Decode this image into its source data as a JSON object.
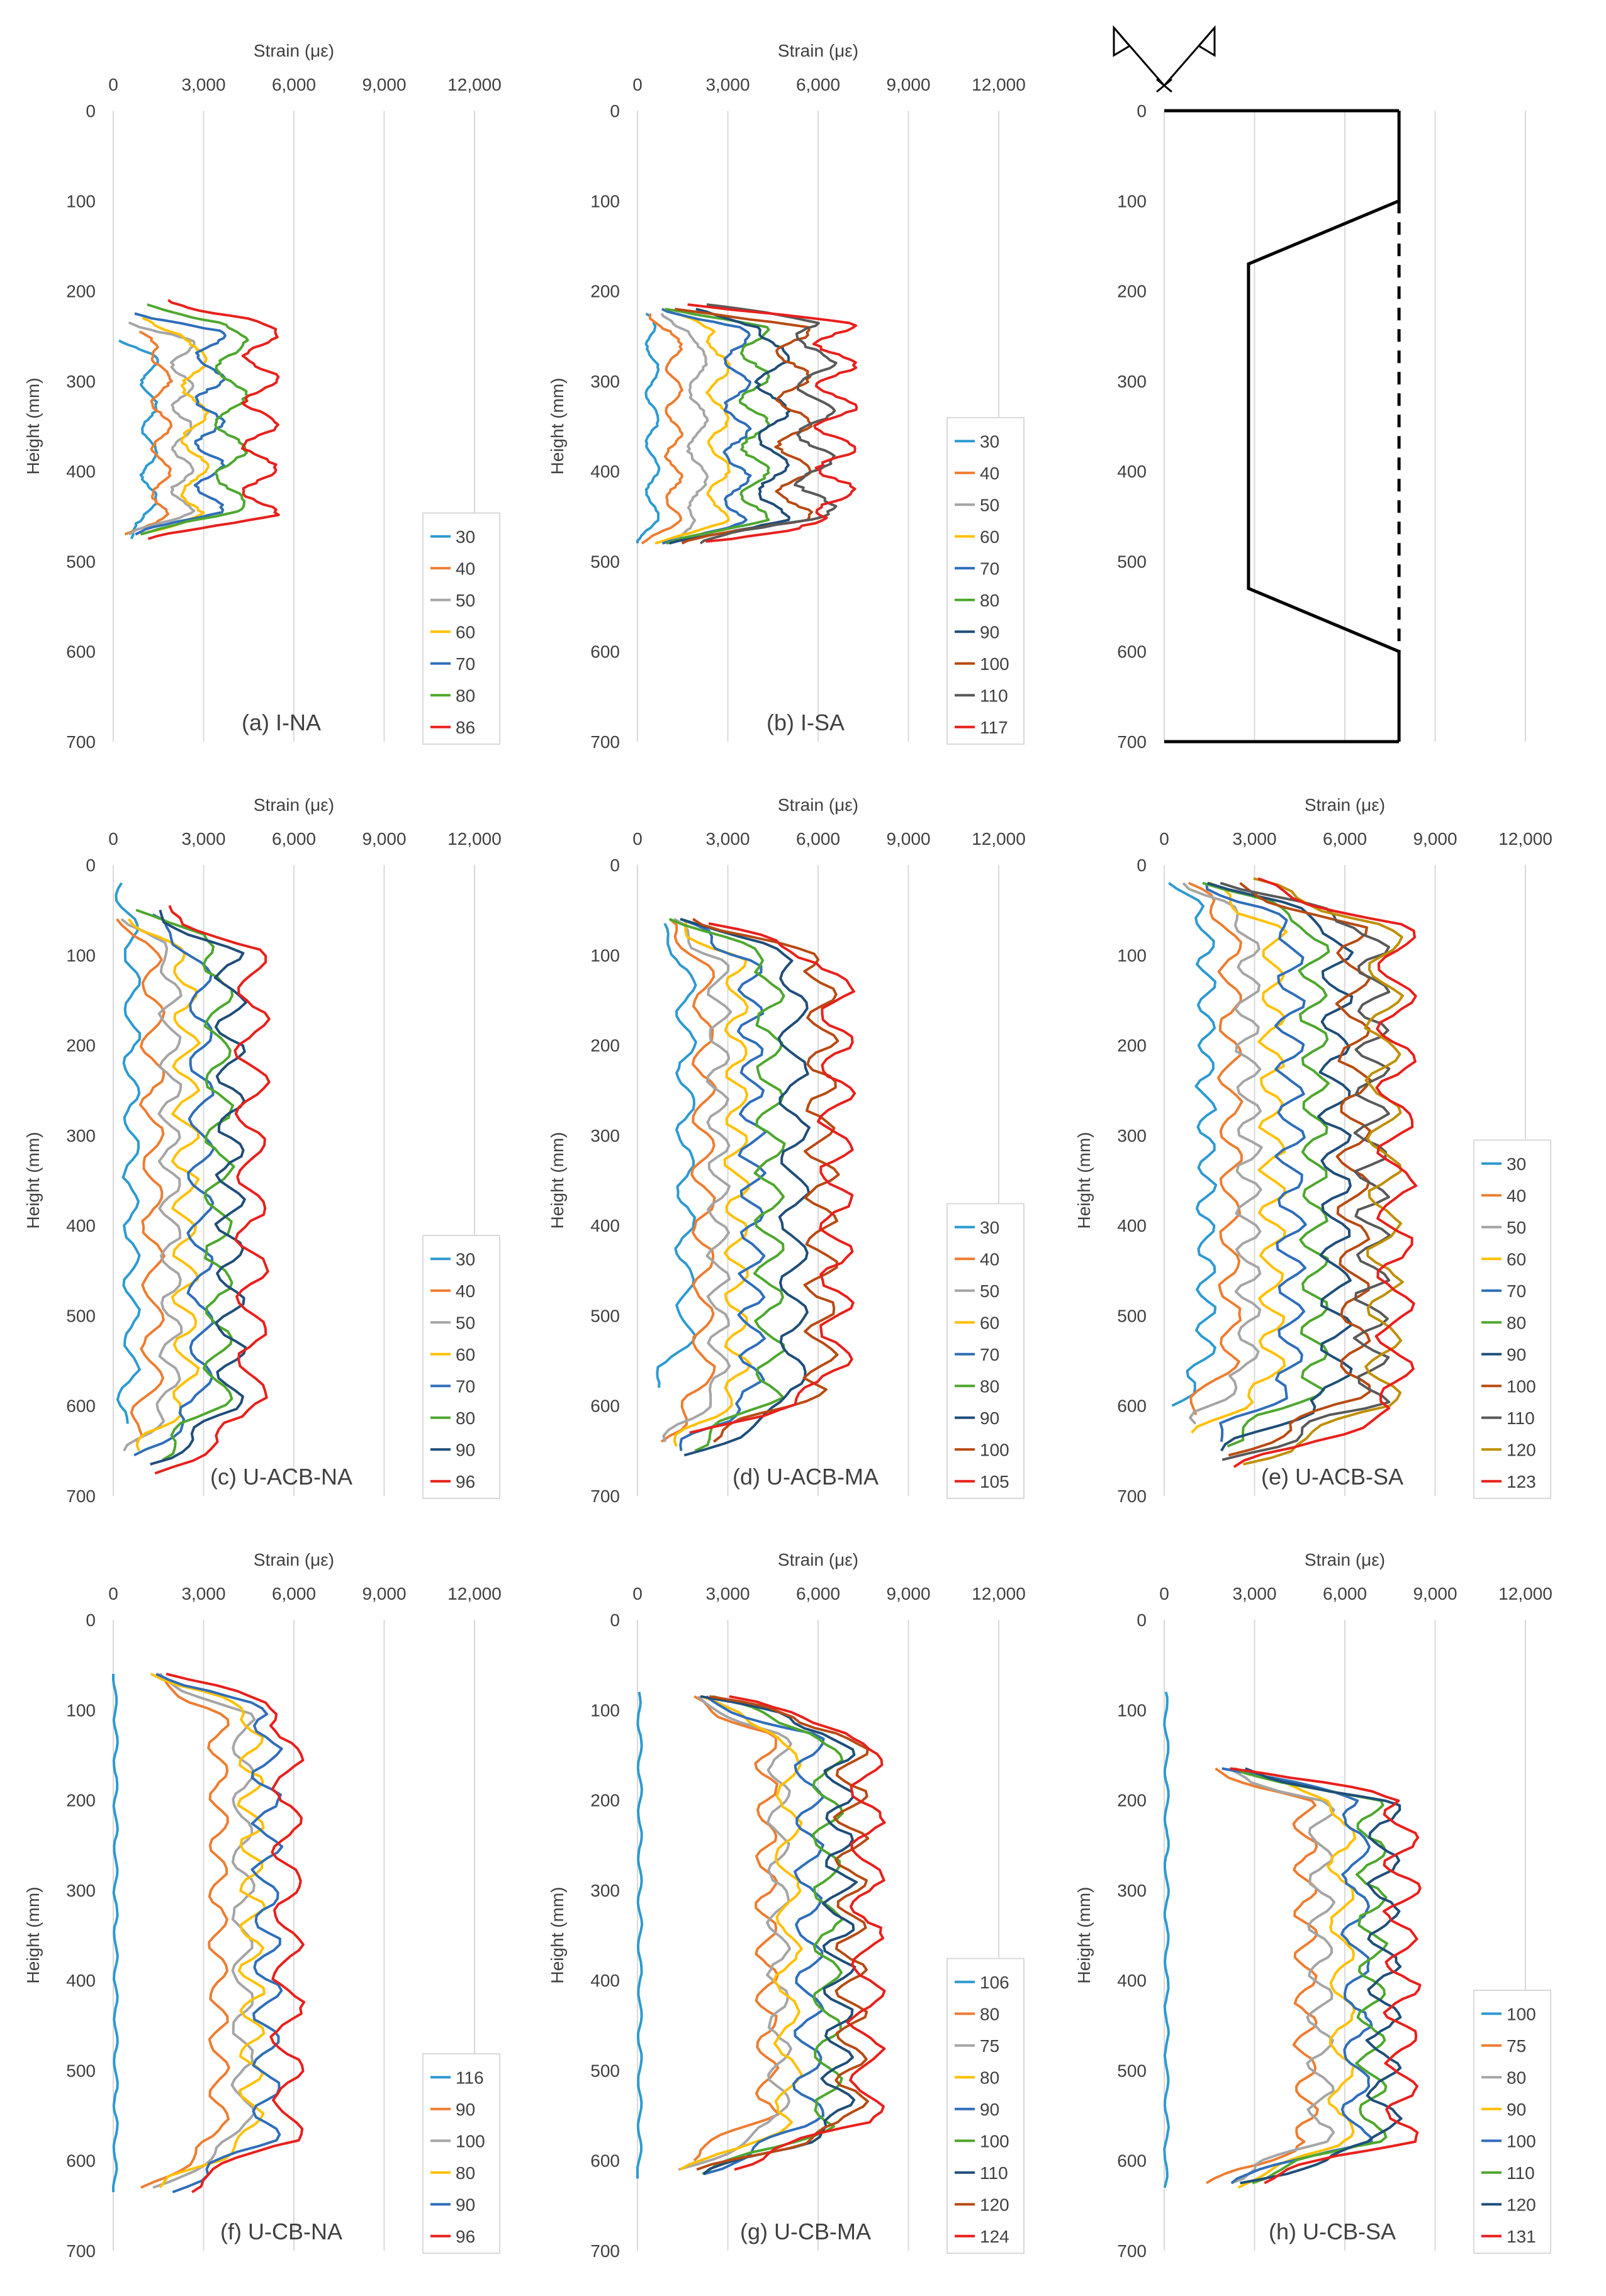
{
  "chart_data": [
    {
      "type": "line",
      "title": "(a) I-NA",
      "xlabel": "Strain (με)",
      "ylabel": "Height (mm)",
      "xlim": [
        0,
        12000
      ],
      "ylim": [
        0,
        700
      ],
      "x_ticks": [
        "0",
        "3,000",
        "6,000",
        "9,000",
        "12,000"
      ],
      "y_ticks": [
        "0",
        "100",
        "200",
        "300",
        "400",
        "500",
        "600",
        "700"
      ],
      "legend_position": "bottom-right",
      "series": [
        {
          "name": "30",
          "color": "#2E9AD0",
          "y_range": [
            255,
            475
          ],
          "peak": 1200,
          "amp": 250
        },
        {
          "name": "40",
          "color": "#ED7D31",
          "y_range": [
            245,
            470
          ],
          "peak": 1600,
          "amp": 300
        },
        {
          "name": "50",
          "color": "#A5A5A5",
          "y_range": [
            235,
            470
          ],
          "peak": 2300,
          "amp": 350
        },
        {
          "name": "60",
          "color": "#FFC000",
          "y_range": [
            230,
            470
          ],
          "peak": 2700,
          "amp": 400
        },
        {
          "name": "70",
          "color": "#2F6EBA",
          "y_range": [
            225,
            470
          ],
          "peak": 3200,
          "amp": 450
        },
        {
          "name": "80",
          "color": "#4EA72E",
          "y_range": [
            215,
            470
          ],
          "peak": 3900,
          "amp": 500
        },
        {
          "name": "86",
          "color": "#E8201C",
          "y_range": [
            210,
            475
          ],
          "peak": 4900,
          "amp": 550
        }
      ]
    },
    {
      "type": "line",
      "title": "(b) I-SA",
      "xlabel": "Strain (με)",
      "ylabel": "Height (mm)",
      "xlim": [
        0,
        12000
      ],
      "ylim": [
        0,
        700
      ],
      "x_ticks": [
        "0",
        "3,000",
        "6,000",
        "9,000",
        "12,000"
      ],
      "y_ticks": [
        "0",
        "100",
        "200",
        "300",
        "400",
        "500",
        "600",
        "700"
      ],
      "legend_position": "bottom-right",
      "series": [
        {
          "name": "30",
          "color": "#2E9AD0",
          "y_range": [
            225,
            480
          ],
          "peak": 500,
          "amp": 200
        },
        {
          "name": "40",
          "color": "#ED7D31",
          "y_range": [
            225,
            480
          ],
          "peak": 1200,
          "amp": 250
        },
        {
          "name": "50",
          "color": "#A5A5A5",
          "y_range": [
            225,
            480
          ],
          "peak": 2000,
          "amp": 300
        },
        {
          "name": "60",
          "color": "#FFC000",
          "y_range": [
            225,
            480
          ],
          "peak": 2700,
          "amp": 350
        },
        {
          "name": "70",
          "color": "#2F6EBA",
          "y_range": [
            220,
            480
          ],
          "peak": 3300,
          "amp": 400
        },
        {
          "name": "80",
          "color": "#4EA72E",
          "y_range": [
            220,
            480
          ],
          "peak": 3900,
          "amp": 450
        },
        {
          "name": "90",
          "color": "#1F4E79",
          "y_range": [
            220,
            480
          ],
          "peak": 4500,
          "amp": 500
        },
        {
          "name": "100",
          "color": "#B84A12",
          "y_range": [
            220,
            480
          ],
          "peak": 5200,
          "amp": 550
        },
        {
          "name": "110",
          "color": "#595959",
          "y_range": [
            215,
            480
          ],
          "peak": 5900,
          "amp": 600
        },
        {
          "name": "117",
          "color": "#E8201C",
          "y_range": [
            215,
            478
          ],
          "peak": 6600,
          "amp": 650
        }
      ]
    },
    {
      "type": "diagram",
      "ylim": [
        0,
        700
      ],
      "y_ticks": [
        "0",
        "100",
        "200",
        "300",
        "400",
        "500",
        "600",
        "700"
      ],
      "profile_solid": [
        [
          7800,
          0
        ],
        [
          7800,
          100
        ],
        [
          2800,
          170
        ],
        [
          2800,
          530
        ],
        [
          7800,
          600
        ],
        [
          7800,
          700
        ]
      ],
      "profile_dashed": [
        [
          7800,
          100
        ],
        [
          7800,
          600
        ]
      ]
    },
    {
      "type": "line",
      "title": "(c) U-ACB-NA",
      "xlabel": "Strain (με)",
      "ylabel": "Height (mm)",
      "xlim": [
        0,
        12000
      ],
      "ylim": [
        0,
        700
      ],
      "x_ticks": [
        "0",
        "3,000",
        "6,000",
        "9,000",
        "12,000"
      ],
      "y_ticks": [
        "0",
        "100",
        "200",
        "300",
        "400",
        "500",
        "600",
        "700"
      ],
      "legend_position": "bottom-right",
      "series": [
        {
          "name": "30",
          "color": "#2E9AD0",
          "y_range": [
            20,
            620
          ],
          "peak": 600,
          "amp": 250
        },
        {
          "name": "40",
          "color": "#ED7D31",
          "y_range": [
            60,
            640
          ],
          "peak": 1300,
          "amp": 350
        },
        {
          "name": "50",
          "color": "#A5A5A5",
          "y_range": [
            60,
            650
          ],
          "peak": 1900,
          "amp": 350
        },
        {
          "name": "60",
          "color": "#FFC000",
          "y_range": [
            60,
            650
          ],
          "peak": 2400,
          "amp": 400
        },
        {
          "name": "70",
          "color": "#2F6EBA",
          "y_range": [
            55,
            655
          ],
          "peak": 2900,
          "amp": 400
        },
        {
          "name": "80",
          "color": "#4EA72E",
          "y_range": [
            50,
            660
          ],
          "peak": 3500,
          "amp": 450
        },
        {
          "name": "90",
          "color": "#1F4E79",
          "y_range": [
            50,
            665
          ],
          "peak": 3900,
          "amp": 450
        },
        {
          "name": "96",
          "color": "#E8201C",
          "y_range": [
            45,
            675
          ],
          "peak": 4600,
          "amp": 500
        }
      ]
    },
    {
      "type": "line",
      "title": "(d) U-ACB-MA",
      "xlabel": "Strain (με)",
      "ylabel": "Height (mm)",
      "xlim": [
        0,
        12000
      ],
      "ylim": [
        0,
        700
      ],
      "x_ticks": [
        "0",
        "3,000",
        "6,000",
        "9,000",
        "12,000"
      ],
      "y_ticks": [
        "0",
        "100",
        "200",
        "300",
        "400",
        "500",
        "600",
        "700"
      ],
      "legend_position": "bottom-right",
      "series": [
        {
          "name": "30",
          "color": "#2E9AD0",
          "y_range": [
            65,
            580
          ],
          "peak": 1600,
          "amp": 300
        },
        {
          "name": "40",
          "color": "#ED7D31",
          "y_range": [
            60,
            640
          ],
          "peak": 2200,
          "amp": 350
        },
        {
          "name": "50",
          "color": "#A5A5A5",
          "y_range": [
            60,
            640
          ],
          "peak": 2700,
          "amp": 350
        },
        {
          "name": "60",
          "color": "#FFC000",
          "y_range": [
            60,
            645
          ],
          "peak": 3300,
          "amp": 400
        },
        {
          "name": "70",
          "color": "#2F6EBA",
          "y_range": [
            60,
            650
          ],
          "peak": 3800,
          "amp": 400
        },
        {
          "name": "80",
          "color": "#4EA72E",
          "y_range": [
            60,
            650
          ],
          "peak": 4400,
          "amp": 450
        },
        {
          "name": "90",
          "color": "#1F4E79",
          "y_range": [
            60,
            655
          ],
          "peak": 5200,
          "amp": 450
        },
        {
          "name": "100",
          "color": "#B84A12",
          "y_range": [
            60,
            640
          ],
          "peak": 6100,
          "amp": 500
        },
        {
          "name": "105",
          "color": "#E8201C",
          "y_range": [
            65,
            630
          ],
          "peak": 6600,
          "amp": 550
        }
      ]
    },
    {
      "type": "line",
      "title": "(e) U-ACB-SA",
      "xlabel": "Strain (με)",
      "ylabel": "Height (mm)",
      "xlim": [
        0,
        12000
      ],
      "ylim": [
        0,
        700
      ],
      "x_ticks": [
        "0",
        "3,000",
        "6,000",
        "9,000",
        "12,000"
      ],
      "y_ticks": [
        "0",
        "100",
        "200",
        "300",
        "400",
        "500",
        "600",
        "700"
      ],
      "legend_position": "bottom-right",
      "series": [
        {
          "name": "30",
          "color": "#2E9AD0",
          "y_range": [
            20,
            600
          ],
          "peak": 1400,
          "amp": 300
        },
        {
          "name": "40",
          "color": "#ED7D31",
          "y_range": [
            20,
            610
          ],
          "peak": 2200,
          "amp": 350
        },
        {
          "name": "50",
          "color": "#A5A5A5",
          "y_range": [
            20,
            620
          ],
          "peak": 2800,
          "amp": 400
        },
        {
          "name": "60",
          "color": "#FFC000",
          "y_range": [
            20,
            630
          ],
          "peak": 3600,
          "amp": 400
        },
        {
          "name": "70",
          "color": "#2F6EBA",
          "y_range": [
            20,
            640
          ],
          "peak": 4200,
          "amp": 450
        },
        {
          "name": "80",
          "color": "#4EA72E",
          "y_range": [
            20,
            645
          ],
          "peak": 5000,
          "amp": 450
        },
        {
          "name": "90",
          "color": "#1F4E79",
          "y_range": [
            20,
            650
          ],
          "peak": 5700,
          "amp": 500
        },
        {
          "name": "100",
          "color": "#B84A12",
          "y_range": [
            20,
            655
          ],
          "peak": 6300,
          "amp": 500
        },
        {
          "name": "110",
          "color": "#595959",
          "y_range": [
            20,
            660
          ],
          "peak": 6900,
          "amp": 550
        },
        {
          "name": "120",
          "color": "#BF8F00",
          "y_range": [
            15,
            665
          ],
          "peak": 7300,
          "amp": 550
        },
        {
          "name": "123",
          "color": "#E8201C",
          "y_range": [
            15,
            668
          ],
          "peak": 7700,
          "amp": 600
        }
      ]
    },
    {
      "type": "line",
      "title": "(f) U-CB-NA",
      "xlabel": "Strain (με)",
      "ylabel": "Height (mm)",
      "xlim": [
        0,
        12000
      ],
      "ylim": [
        0,
        700
      ],
      "x_ticks": [
        "0",
        "3,000",
        "6,000",
        "9,000",
        "12,000"
      ],
      "y_ticks": [
        "0",
        "100",
        "200",
        "300",
        "400",
        "500",
        "600",
        "700"
      ],
      "legend_position": "bottom-right",
      "series": [
        {
          "name": "116",
          "color": "#2E9AD0",
          "y_range": [
            60,
            635
          ],
          "peak": 80,
          "amp": 60
        },
        {
          "name": "90",
          "color": "#ED7D31",
          "y_range": [
            60,
            630
          ],
          "peak": 3500,
          "amp": 300
        },
        {
          "name": "100",
          "color": "#A5A5A5",
          "y_range": [
            60,
            630
          ],
          "peak": 4300,
          "amp": 350
        },
        {
          "name": "80",
          "color": "#FFC000",
          "y_range": [
            60,
            630
          ],
          "peak": 4600,
          "amp": 400
        },
        {
          "name": "90",
          "color": "#2F6EBA",
          "y_range": [
            60,
            635
          ],
          "peak": 5100,
          "amp": 450
        },
        {
          "name": "96",
          "color": "#E8201C",
          "y_range": [
            60,
            635
          ],
          "peak": 5800,
          "amp": 500
        }
      ]
    },
    {
      "type": "line",
      "title": "(g) U-CB-MA",
      "xlabel": "Strain (με)",
      "ylabel": "Height (mm)",
      "xlim": [
        0,
        12000
      ],
      "ylim": [
        0,
        700
      ],
      "x_ticks": [
        "0",
        "3,000",
        "6,000",
        "9,000",
        "12,000"
      ],
      "y_ticks": [
        "0",
        "100",
        "200",
        "300",
        "400",
        "500",
        "600",
        "700"
      ],
      "legend_position": "bottom-right",
      "series": [
        {
          "name": "106",
          "color": "#2E9AD0",
          "y_range": [
            80,
            620
          ],
          "peak": 80,
          "amp": 60
        },
        {
          "name": "80",
          "color": "#ED7D31",
          "y_range": [
            85,
            600
          ],
          "peak": 4300,
          "amp": 350
        },
        {
          "name": "75",
          "color": "#A5A5A5",
          "y_range": [
            85,
            610
          ],
          "peak": 4700,
          "amp": 350
        },
        {
          "name": "80",
          "color": "#FFC000",
          "y_range": [
            85,
            610
          ],
          "peak": 5000,
          "amp": 400
        },
        {
          "name": "90",
          "color": "#2F6EBA",
          "y_range": [
            85,
            615
          ],
          "peak": 5700,
          "amp": 450
        },
        {
          "name": "100",
          "color": "#4EA72E",
          "y_range": [
            85,
            615
          ],
          "peak": 6300,
          "amp": 450
        },
        {
          "name": "110",
          "color": "#1F4E79",
          "y_range": [
            85,
            615
          ],
          "peak": 6700,
          "amp": 500
        },
        {
          "name": "120",
          "color": "#B84A12",
          "y_range": [
            85,
            610
          ],
          "peak": 7100,
          "amp": 500
        },
        {
          "name": "124",
          "color": "#E8201C",
          "y_range": [
            85,
            610
          ],
          "peak": 7600,
          "amp": 550
        }
      ]
    },
    {
      "type": "line",
      "title": "(h) U-CB-SA",
      "xlabel": "Strain (με)",
      "ylabel": "Height (mm)",
      "xlim": [
        0,
        12000
      ],
      "ylim": [
        0,
        700
      ],
      "x_ticks": [
        "0",
        "3,000",
        "6,000",
        "9,000",
        "12,000"
      ],
      "y_ticks": [
        "0",
        "100",
        "200",
        "300",
        "400",
        "500",
        "600",
        "700"
      ],
      "legend_position": "bottom-right",
      "series": [
        {
          "name": "100",
          "color": "#2E9AD0",
          "y_range": [
            80,
            630
          ],
          "peak": 80,
          "amp": 60
        },
        {
          "name": "75",
          "color": "#ED7D31",
          "y_range": [
            165,
            625
          ],
          "peak": 4700,
          "amp": 350
        },
        {
          "name": "80",
          "color": "#A5A5A5",
          "y_range": [
            165,
            625
          ],
          "peak": 5200,
          "amp": 400
        },
        {
          "name": "90",
          "color": "#FFC000",
          "y_range": [
            165,
            630
          ],
          "peak": 5900,
          "amp": 400
        },
        {
          "name": "100",
          "color": "#2F6EBA",
          "y_range": [
            165,
            625
          ],
          "peak": 6400,
          "amp": 450
        },
        {
          "name": "110",
          "color": "#4EA72E",
          "y_range": [
            165,
            625
          ],
          "peak": 6900,
          "amp": 450
        },
        {
          "name": "120",
          "color": "#1F4E79",
          "y_range": [
            165,
            625
          ],
          "peak": 7300,
          "amp": 500
        },
        {
          "name": "131",
          "color": "#E8201C",
          "y_range": [
            165,
            625
          ],
          "peak": 7900,
          "amp": 550
        }
      ]
    }
  ]
}
